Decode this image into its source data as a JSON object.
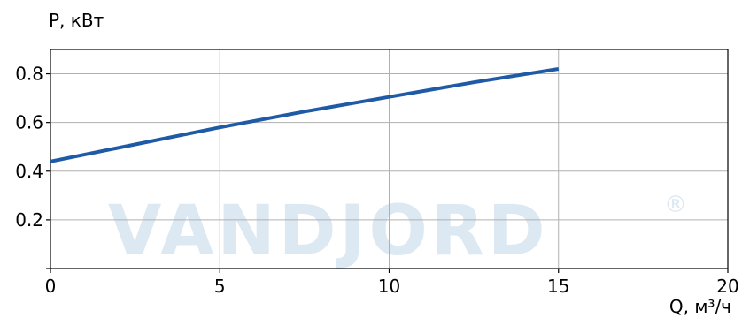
{
  "chart_data": {
    "type": "line",
    "xlabel": "Q, м³/ч",
    "ylabel": "P, кВт",
    "xlim": [
      0,
      20
    ],
    "ylim": [
      0,
      0.9
    ],
    "xticks": [
      0,
      5,
      10,
      15,
      20
    ],
    "yticks": [
      0.2,
      0.4,
      0.6,
      0.8
    ],
    "xtick_labels": [
      "0",
      "5",
      "10",
      "15",
      "20"
    ],
    "ytick_labels": [
      "0.2",
      "0.4",
      "0.6",
      "0.8"
    ],
    "grid": true,
    "series": [
      {
        "color": "#1f5aa6",
        "x": [
          0,
          2.5,
          5,
          7.5,
          10,
          12.5,
          15
        ],
        "y": [
          0.44,
          0.51,
          0.58,
          0.645,
          0.705,
          0.765,
          0.82
        ]
      }
    ]
  },
  "watermark": {
    "text": "VANDJORD",
    "registered_mark": "®",
    "color": "#dce8f2"
  }
}
